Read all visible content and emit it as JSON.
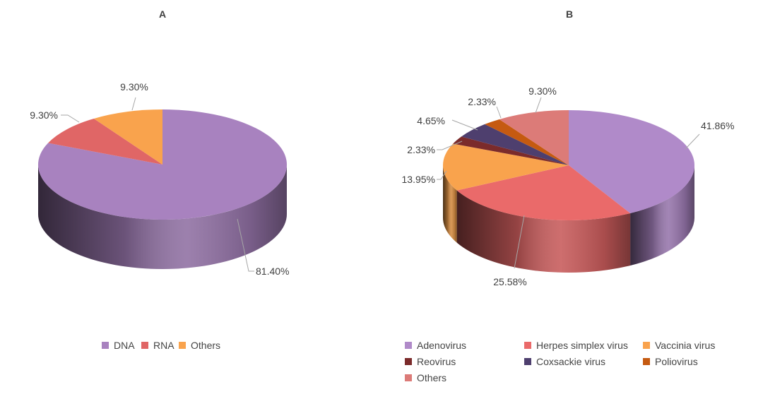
{
  "chart_data": [
    {
      "type": "pie",
      "title": "A",
      "categories": [
        "DNA",
        "RNA",
        "Others"
      ],
      "values": [
        81.4,
        9.3,
        9.3
      ],
      "labels": [
        "81.40%",
        "9.30%",
        "9.30%"
      ],
      "colors": [
        "#a882bf",
        "#e06666",
        "#f9a34d"
      ],
      "legend": "bottom"
    },
    {
      "type": "pie",
      "title": "B",
      "categories": [
        "Adenovirus",
        "Herpes simplex virus",
        "Vaccinia virus",
        "Reovirus",
        "Coxsackie virus",
        "Poliovirus",
        "Others"
      ],
      "values": [
        41.86,
        25.58,
        13.95,
        2.33,
        4.65,
        2.33,
        9.3
      ],
      "labels": [
        "41.86%",
        "25.58%",
        "13.95%",
        "2.33%",
        "4.65%",
        "2.33%",
        "9.30%"
      ],
      "colors": [
        "#b08ac9",
        "#ea6a6a",
        "#f9a34d",
        "#7b2b2b",
        "#4e3f6e",
        "#c55a11",
        "#dc7b78"
      ],
      "legend": "bottom"
    }
  ]
}
